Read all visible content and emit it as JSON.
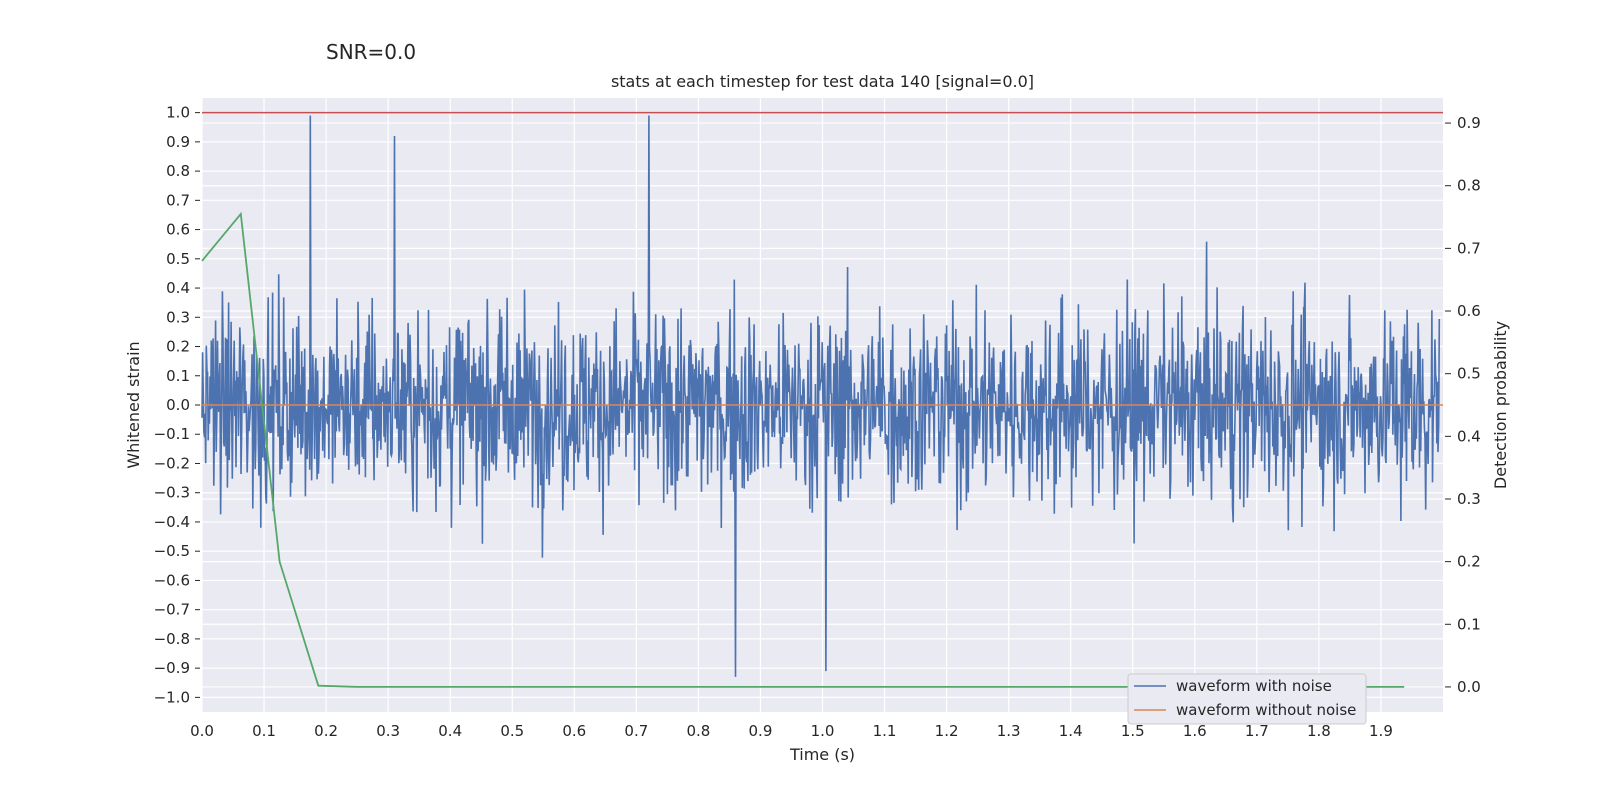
{
  "suptitle": "SNR=0.0",
  "chart_data": {
    "type": "line",
    "title": "stats at each timestep for test data 140 [signal=0.0]",
    "xlabel": "Time (s)",
    "ylabel": "Whitened strain",
    "y2label": "Detection probability",
    "xlim": [
      0.0,
      2.0
    ],
    "ylim": [
      -1.05,
      1.05
    ],
    "y2lim": [
      -0.04,
      0.94
    ],
    "xticks": [
      "0.0",
      "0.1",
      "0.2",
      "0.3",
      "0.4",
      "0.5",
      "0.6",
      "0.7",
      "0.8",
      "0.9",
      "1.0",
      "1.1",
      "1.2",
      "1.3",
      "1.4",
      "1.5",
      "1.6",
      "1.7",
      "1.8",
      "1.9"
    ],
    "yticks": [
      "1.0",
      "0.9",
      "0.8",
      "0.7",
      "0.6",
      "0.5",
      "0.4",
      "0.3",
      "0.2",
      "0.1",
      "0.0",
      "−0.1",
      "−0.2",
      "−0.3",
      "−0.4",
      "−0.5",
      "−0.6",
      "−0.7",
      "−0.8",
      "−0.9",
      "−1.0"
    ],
    "y2ticks": [
      "0.9",
      "0.8",
      "0.7",
      "0.6",
      "0.5",
      "0.4",
      "0.3",
      "0.2",
      "0.1",
      "0.0"
    ],
    "threshold": 1.0,
    "series": [
      {
        "name": "waveform with noise",
        "color": "#4c72b0",
        "axis": "left",
        "kind": "noise",
        "amplitude_peaks": [
          [
            0.175,
            0.99
          ],
          [
            0.72,
            0.99
          ],
          [
            0.31,
            0.92
          ],
          [
            0.86,
            -0.93
          ],
          [
            1.005,
            -0.91
          ]
        ]
      },
      {
        "name": "waveform without noise",
        "color": "#dd8452",
        "axis": "left",
        "x": [
          0.0,
          2.0
        ],
        "values": [
          0.0,
          0.0
        ]
      },
      {
        "name": "Detection probability",
        "color": "#55a868",
        "axis": "right",
        "legend": false,
        "x": [
          0.0,
          0.0625,
          0.125,
          0.1875,
          0.25,
          0.3125,
          0.5,
          1.0,
          1.5,
          1.9375
        ],
        "values": [
          0.68,
          0.755,
          0.2,
          0.002,
          0.0,
          0.0,
          0.0,
          0.0,
          0.0,
          0.0
        ]
      }
    ],
    "legend_position": "lower-right"
  }
}
